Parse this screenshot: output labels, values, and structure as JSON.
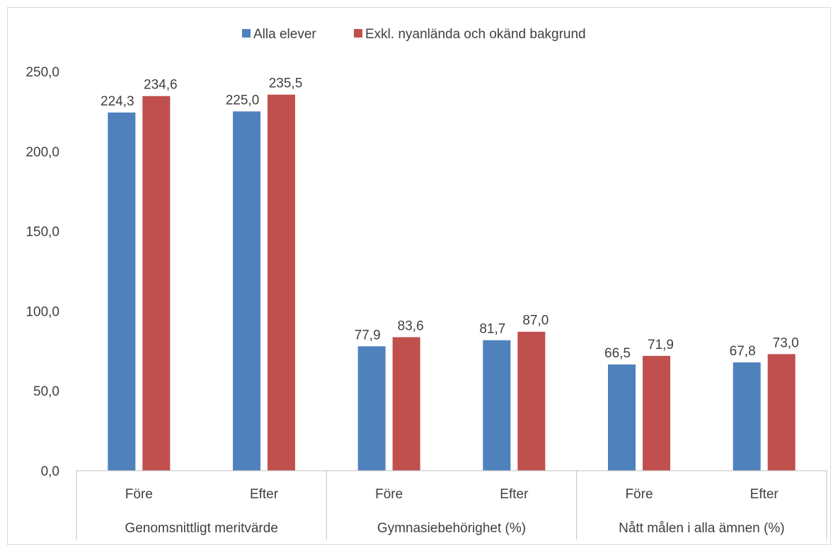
{
  "chart_data": {
    "type": "bar",
    "groups": [
      {
        "label": "Genomsnittligt meritvärde",
        "subcategories": [
          "Före",
          "Efter"
        ]
      },
      {
        "label": "Gymnasiebehörighet (%)",
        "subcategories": [
          "Före",
          "Efter"
        ]
      },
      {
        "label": "Nått målen i alla ämnen (%)",
        "subcategories": [
          "Före",
          "Efter"
        ]
      }
    ],
    "series": [
      {
        "name": "Alla elever",
        "color": "#4f81bd",
        "values": [
          224.3,
          225.0,
          77.9,
          81.7,
          66.5,
          67.8
        ],
        "labels": [
          "224,3",
          "225,0",
          "77,9",
          "81,7",
          "66,5",
          "67,8"
        ]
      },
      {
        "name": "Exkl. nyanlända och okänd bakgrund",
        "color": "#c0504d",
        "values": [
          234.6,
          235.5,
          83.6,
          87.0,
          71.9,
          73.0
        ],
        "labels": [
          "234,6",
          "235,5",
          "83,6",
          "87,0",
          "71,9",
          "73,0"
        ]
      }
    ],
    "yticks": [
      0,
      50,
      100,
      150,
      200,
      250
    ],
    "ytick_labels": [
      "0,0",
      "50,0",
      "100,0",
      "150,0",
      "200,0",
      "250,0"
    ],
    "ylim": [
      0,
      250
    ],
    "legend_position": "top-center",
    "grid": false
  }
}
